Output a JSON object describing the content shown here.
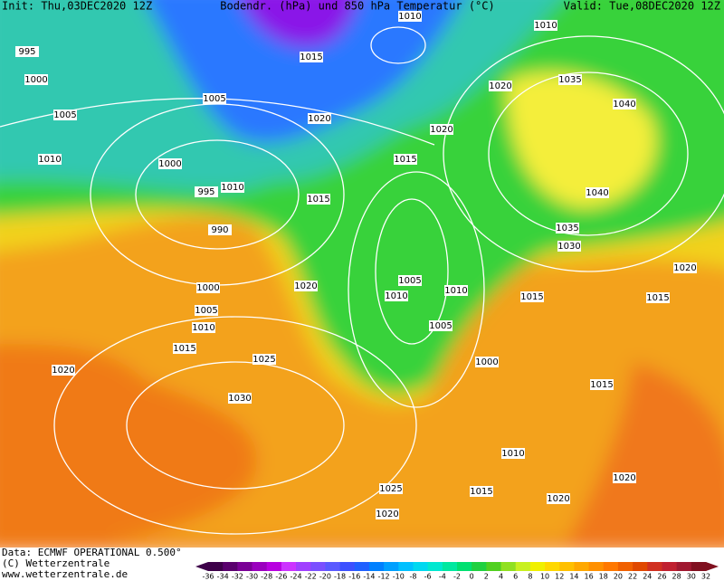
{
  "header": {
    "init": "Init: Thu,03DEC2020 12Z",
    "title": "Bodendr. (hPa) und 850 hPa Temperatur (°C)",
    "valid": "Valid: Tue,08DEC2020 12Z"
  },
  "isobar_labels": [
    "995",
    "1000",
    "1005",
    "1010",
    "1000",
    "995",
    "1010",
    "990",
    "1005",
    "1015",
    "1020",
    "1010",
    "1020",
    "1010",
    "1035",
    "1040",
    "1020",
    "1015",
    "1015",
    "1040",
    "1035",
    "1030",
    "1020",
    "1015",
    "1015",
    "1005",
    "1010",
    "1010",
    "1005",
    "1000",
    "1020",
    "1000",
    "1005",
    "1010",
    "1015",
    "1020",
    "1025",
    "1030",
    "1015",
    "1010",
    "1020",
    "1020",
    "1015",
    "1025",
    "1020"
  ],
  "footer": {
    "data": "Data: ECMWF OPERATIONAL 0.500°",
    "copyright": "(C) Wetterzentrale",
    "url": "www.wetterzentrale.de"
  },
  "colorbar": {
    "ticks": [
      -36,
      -34,
      -32,
      -30,
      -28,
      -26,
      -24,
      -22,
      -20,
      -18,
      -16,
      -14,
      -12,
      -10,
      -8,
      -6,
      -4,
      -2,
      0,
      2,
      4,
      6,
      8,
      10,
      12,
      14,
      16,
      18,
      20,
      22,
      24,
      26,
      28,
      30,
      32
    ],
    "colors": [
      "#3d0049",
      "#5a006e",
      "#7a0096",
      "#9a00be",
      "#b800e0",
      "#cc33ff",
      "#a040ff",
      "#7a50ff",
      "#5a5aff",
      "#3c50ff",
      "#2060ff",
      "#0080ff",
      "#00a0ff",
      "#00c0ff",
      "#00d8f0",
      "#00e8d0",
      "#00e8a0",
      "#00e070",
      "#20d040",
      "#50d020",
      "#90e020",
      "#c8f020",
      "#f0f000",
      "#ffd800",
      "#ffc000",
      "#ffa800",
      "#ff9000",
      "#ff7800",
      "#f06000",
      "#e04800",
      "#d03020",
      "#c02030",
      "#a01830",
      "#801020"
    ]
  }
}
